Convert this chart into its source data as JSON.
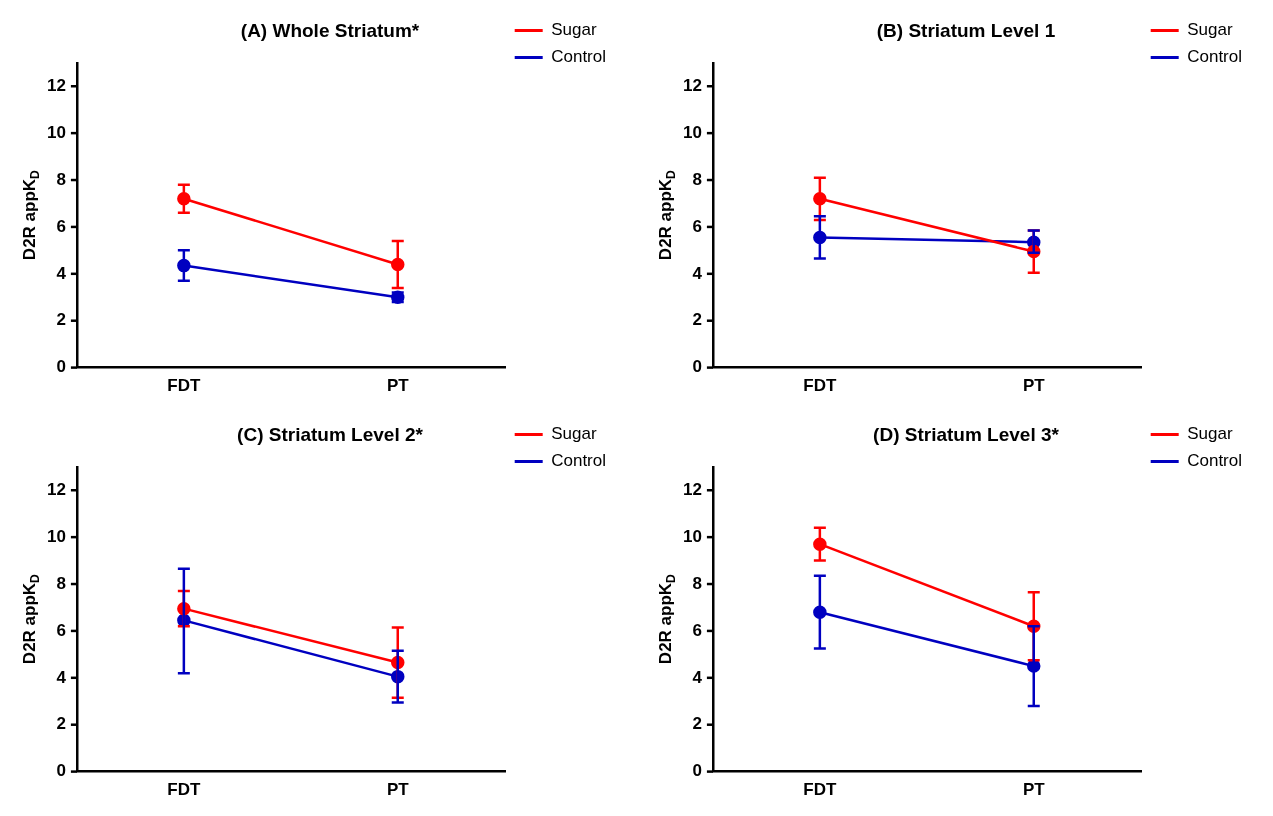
{
  "chart_data": [
    {
      "type": "line",
      "title": "(A) Whole Striatum*",
      "ylabel": "D2R appK$_{D}$",
      "categories": [
        "FDT",
        "PT"
      ],
      "ylim": [
        0,
        13
      ],
      "yticks": [
        0,
        2,
        4,
        6,
        8,
        10,
        12
      ],
      "grid": false,
      "legend": "top right",
      "marker": "circle",
      "line_style": "solid",
      "series": [
        {
          "name": "Sugar",
          "color": "#ff0000",
          "values": [
            7.2,
            4.4
          ],
          "errors": [
            [
              6.6,
              7.8
            ],
            [
              3.4,
              5.4
            ]
          ]
        },
        {
          "name": "Control",
          "color": "#0000c0",
          "values": [
            4.35,
            3.0
          ],
          "errors": [
            [
              3.7,
              5.0
            ],
            [
              2.8,
              3.2
            ]
          ]
        }
      ]
    },
    {
      "type": "line",
      "title": "(B) Striatum Level 1",
      "ylabel": "D2R appK$_{D}$",
      "categories": [
        "FDT",
        "PT"
      ],
      "ylim": [
        0,
        13
      ],
      "yticks": [
        0,
        2,
        4,
        6,
        8,
        10,
        12
      ],
      "grid": false,
      "legend": "top right",
      "marker": "circle",
      "line_style": "solid",
      "series": [
        {
          "name": "Sugar",
          "color": "#ff0000",
          "values": [
            7.2,
            4.95
          ],
          "errors": [
            [
              6.3,
              8.1
            ],
            [
              4.05,
              5.85
            ]
          ]
        },
        {
          "name": "Control",
          "color": "#0000c0",
          "values": [
            5.55,
            5.35
          ],
          "errors": [
            [
              4.65,
              6.45
            ],
            [
              4.9,
              5.85
            ]
          ]
        }
      ]
    },
    {
      "type": "line",
      "title": "(C) Striatum Level 2*",
      "ylabel": "D2R appK$_{D}$",
      "categories": [
        "FDT",
        "PT"
      ],
      "ylim": [
        0,
        13
      ],
      "yticks": [
        0,
        2,
        4,
        6,
        8,
        10,
        12
      ],
      "grid": false,
      "legend": "top right",
      "marker": "circle",
      "line_style": "solid",
      "series": [
        {
          "name": "Sugar",
          "color": "#ff0000",
          "values": [
            6.95,
            4.65
          ],
          "errors": [
            [
              6.2,
              7.7
            ],
            [
              3.15,
              6.15
            ]
          ]
        },
        {
          "name": "Control",
          "color": "#0000c0",
          "values": [
            6.45,
            4.05
          ],
          "errors": [
            [
              4.2,
              8.65
            ],
            [
              2.95,
              5.15
            ]
          ]
        }
      ]
    },
    {
      "type": "line",
      "title": "(D) Striatum Level 3*",
      "ylabel": "D2R appK$_{D}$",
      "categories": [
        "FDT",
        "PT"
      ],
      "ylim": [
        0,
        13
      ],
      "yticks": [
        0,
        2,
        4,
        6,
        8,
        10,
        12
      ],
      "grid": false,
      "legend": "top right",
      "marker": "circle",
      "line_style": "solid",
      "series": [
        {
          "name": "Sugar",
          "color": "#ff0000",
          "values": [
            9.7,
            6.2
          ],
          "errors": [
            [
              9.0,
              10.4
            ],
            [
              4.75,
              7.65
            ]
          ]
        },
        {
          "name": "Control",
          "color": "#0000c0",
          "values": [
            6.8,
            4.5
          ],
          "errors": [
            [
              5.25,
              8.35
            ],
            [
              2.8,
              6.2
            ]
          ]
        }
      ]
    }
  ]
}
